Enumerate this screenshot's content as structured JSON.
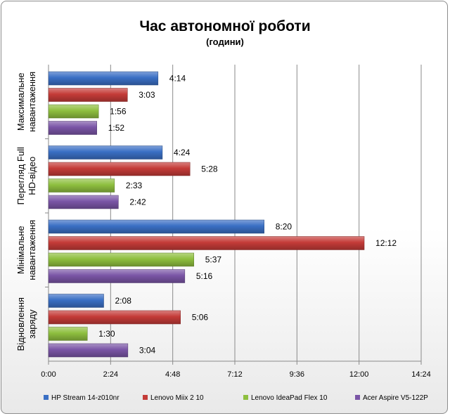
{
  "chart_data": {
    "type": "bar",
    "orientation": "horizontal",
    "title": "Час автономної роботи",
    "subtitle": "(години)",
    "categories": [
      [
        "Максимальне",
        "навантаження"
      ],
      [
        "Перегляд Full",
        "HD-відео"
      ],
      [
        "Мінімальне",
        "навантаження"
      ],
      [
        "Відновлення",
        "заряду"
      ]
    ],
    "x_ticks": [
      "0:00",
      "2:24",
      "4:48",
      "7:12",
      "9:36",
      "12:00",
      "14:24"
    ],
    "xlim_minutes": [
      0,
      864
    ],
    "tick_step_minutes": 144,
    "grid": true,
    "legend_position": "bottom",
    "series": [
      {
        "name": "HP Stream 14-z010nr",
        "color": "#3a6fc4",
        "values_minutes": [
          254,
          264,
          500,
          128
        ],
        "labels": [
          "4:14",
          "4:24",
          "8:20",
          "2:08"
        ]
      },
      {
        "name": "Lenovo Miix 2 10",
        "color": "#c43b38",
        "values_minutes": [
          183,
          328,
          732,
          306
        ],
        "labels": [
          "3:03",
          "5:28",
          "12:12",
          "5:06"
        ]
      },
      {
        "name": "Lenovo IdeaPad Flex 10",
        "color": "#8ebf3f",
        "values_minutes": [
          116,
          153,
          337,
          90
        ],
        "labels": [
          "1:56",
          "2:33",
          "5:37",
          "1:30"
        ]
      },
      {
        "name": "Acer Aspire V5-122P",
        "color": "#7a55a6",
        "values_minutes": [
          112,
          162,
          316,
          184
        ],
        "labels": [
          "1:52",
          "2:42",
          "5:16",
          "3:04"
        ]
      }
    ]
  }
}
